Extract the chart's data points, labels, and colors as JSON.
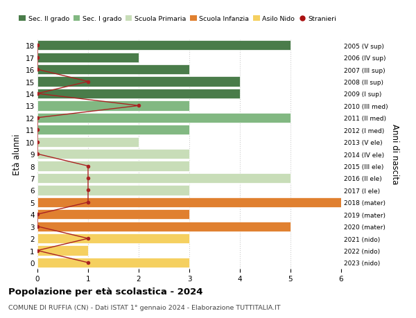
{
  "ages": [
    18,
    17,
    16,
    15,
    14,
    13,
    12,
    11,
    10,
    9,
    8,
    7,
    6,
    5,
    4,
    3,
    2,
    1,
    0
  ],
  "years": [
    "2005 (V sup)",
    "2006 (IV sup)",
    "2007 (III sup)",
    "2008 (II sup)",
    "2009 (I sup)",
    "2010 (III med)",
    "2011 (II med)",
    "2012 (I med)",
    "2013 (V ele)",
    "2014 (IV ele)",
    "2015 (III ele)",
    "2016 (II ele)",
    "2017 (I ele)",
    "2018 (mater)",
    "2019 (mater)",
    "2020 (mater)",
    "2021 (nido)",
    "2022 (nido)",
    "2023 (nido)"
  ],
  "bar_values": [
    5,
    2,
    3,
    4,
    4,
    3,
    5,
    3,
    2,
    3,
    3,
    5,
    3,
    6,
    3,
    5,
    3,
    1,
    3
  ],
  "bar_colors": [
    "#4a7c4a",
    "#4a7c4a",
    "#4a7c4a",
    "#4a7c4a",
    "#4a7c4a",
    "#82b882",
    "#82b882",
    "#82b882",
    "#c8ddb8",
    "#c8ddb8",
    "#c8ddb8",
    "#c8ddb8",
    "#c8ddb8",
    "#e08030",
    "#e08030",
    "#e08030",
    "#f5d060",
    "#f5d060",
    "#f5d060"
  ],
  "stranieri_values": [
    0,
    0,
    0,
    1,
    0,
    2,
    0,
    0,
    0,
    0,
    1,
    1,
    1,
    1,
    0,
    0,
    1,
    0,
    1
  ],
  "legend_labels": [
    "Sec. II grado",
    "Sec. I grado",
    "Scuola Primaria",
    "Scuola Infanzia",
    "Asilo Nido",
    "Stranieri"
  ],
  "legend_colors": [
    "#4a7c4a",
    "#82b882",
    "#c8ddb8",
    "#e08030",
    "#f5d060",
    "#aa1111"
  ],
  "stranieri_color": "#aa2222",
  "title_bold": "Popolazione per età scolastica - 2024",
  "subtitle": "COMUNE DI RUFFIA (CN) - Dati ISTAT 1° gennaio 2024 - Elaborazione TUTTITALIA.IT",
  "ylabel_left": "Età alunni",
  "ylabel_right": "Anni di nascita",
  "xlim": [
    0,
    6
  ],
  "xticks": [
    0,
    1,
    2,
    3,
    4,
    5,
    6
  ],
  "background_color": "#ffffff",
  "grid_color": "#cccccc",
  "bar_height": 0.82
}
